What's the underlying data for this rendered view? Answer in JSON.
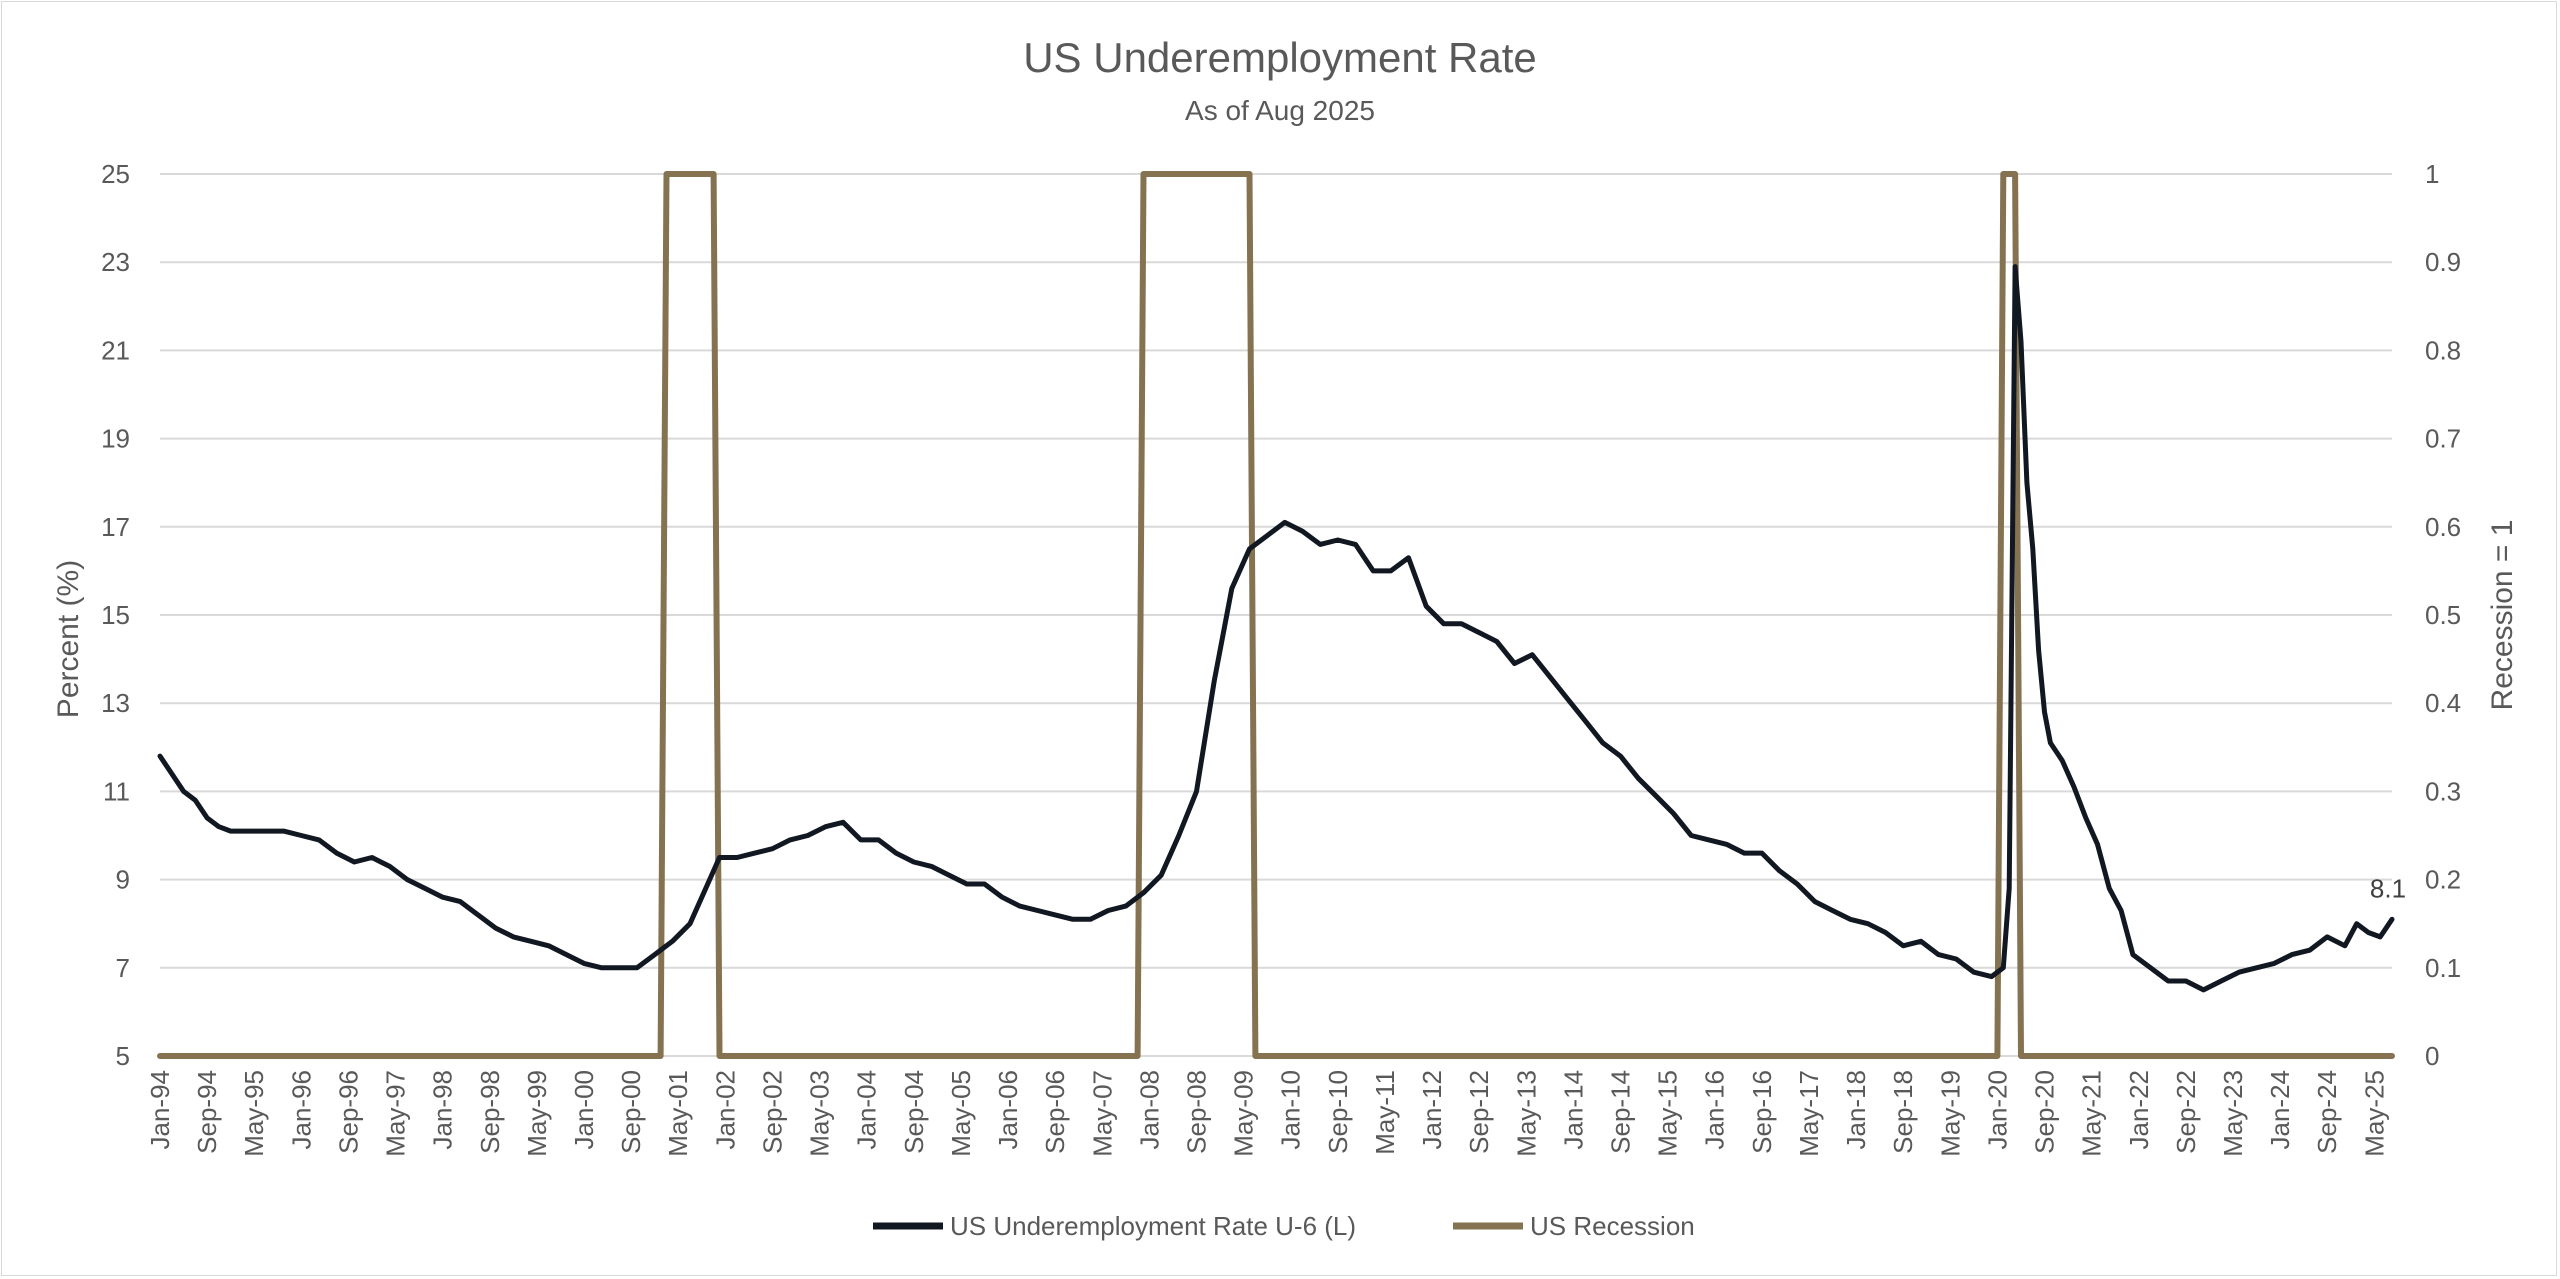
{
  "chart_data": {
    "type": "line",
    "title": "US Underemployment Rate",
    "subtitle": "As of Aug 2025",
    "ylabel_left": "Percent (%)",
    "ylabel_right": "Recession = 1",
    "ylim_left": [
      5,
      25
    ],
    "ylim_right": [
      0,
      1
    ],
    "yticks_left": [
      "5",
      "7",
      "9",
      "11",
      "13",
      "15",
      "17",
      "19",
      "21",
      "23",
      "25"
    ],
    "yticks_right": [
      "0",
      "0.1",
      "0.2",
      "0.3",
      "0.4",
      "0.5",
      "0.6",
      "0.7",
      "0.8",
      "0.9",
      "1"
    ],
    "xlim": [
      "1994-01",
      "2025-08"
    ],
    "xtick_labels": [
      "Jan-94",
      "Sep-94",
      "May-95",
      "Jan-96",
      "Sep-96",
      "May-97",
      "Jan-98",
      "Sep-98",
      "May-99",
      "Jan-00",
      "Sep-00",
      "May-01",
      "Jan-02",
      "Sep-02",
      "May-03",
      "Jan-04",
      "Sep-04",
      "May-05",
      "Jan-06",
      "Sep-06",
      "May-07",
      "Jan-08",
      "Sep-08",
      "May-09",
      "Jan-10",
      "Sep-10",
      "May-11",
      "Jan-12",
      "Sep-12",
      "May-13",
      "Jan-14",
      "Sep-14",
      "May-15",
      "Jan-16",
      "Sep-16",
      "May-17",
      "Jan-18",
      "Sep-18",
      "May-19",
      "Jan-20",
      "Sep-20",
      "May-21",
      "Jan-22",
      "Sep-22",
      "May-23",
      "Jan-24",
      "Sep-24",
      "May-25"
    ],
    "grid": true,
    "legend_position": "bottom",
    "series": [
      {
        "name": "US Underemployment Rate U-6 (L)",
        "axis": "left",
        "color": "#121821",
        "points": [
          [
            "1994-01",
            11.8
          ],
          [
            "1994-03",
            11.4
          ],
          [
            "1994-05",
            11.0
          ],
          [
            "1994-07",
            10.8
          ],
          [
            "1994-09",
            10.4
          ],
          [
            "1994-11",
            10.2
          ],
          [
            "1995-01",
            10.1
          ],
          [
            "1995-04",
            10.1
          ],
          [
            "1995-07",
            10.1
          ],
          [
            "1995-10",
            10.1
          ],
          [
            "1996-01",
            10.0
          ],
          [
            "1996-04",
            9.9
          ],
          [
            "1996-07",
            9.6
          ],
          [
            "1996-10",
            9.4
          ],
          [
            "1997-01",
            9.5
          ],
          [
            "1997-04",
            9.3
          ],
          [
            "1997-07",
            9.0
          ],
          [
            "1997-10",
            8.8
          ],
          [
            "1998-01",
            8.6
          ],
          [
            "1998-04",
            8.5
          ],
          [
            "1998-07",
            8.2
          ],
          [
            "1998-10",
            7.9
          ],
          [
            "1999-01",
            7.7
          ],
          [
            "1999-04",
            7.6
          ],
          [
            "1999-07",
            7.5
          ],
          [
            "1999-10",
            7.3
          ],
          [
            "2000-01",
            7.1
          ],
          [
            "2000-04",
            7.0
          ],
          [
            "2000-07",
            7.0
          ],
          [
            "2000-10",
            7.0
          ],
          [
            "2001-01",
            7.3
          ],
          [
            "2001-04",
            7.6
          ],
          [
            "2001-07",
            8.0
          ],
          [
            "2001-10",
            8.9
          ],
          [
            "2001-12",
            9.5
          ],
          [
            "2002-03",
            9.5
          ],
          [
            "2002-06",
            9.6
          ],
          [
            "2002-09",
            9.7
          ],
          [
            "2002-12",
            9.9
          ],
          [
            "2003-03",
            10.0
          ],
          [
            "2003-06",
            10.2
          ],
          [
            "2003-09",
            10.3
          ],
          [
            "2003-12",
            9.9
          ],
          [
            "2004-03",
            9.9
          ],
          [
            "2004-06",
            9.6
          ],
          [
            "2004-09",
            9.4
          ],
          [
            "2004-12",
            9.3
          ],
          [
            "2005-03",
            9.1
          ],
          [
            "2005-06",
            8.9
          ],
          [
            "2005-09",
            8.9
          ],
          [
            "2005-12",
            8.6
          ],
          [
            "2006-03",
            8.4
          ],
          [
            "2006-06",
            8.3
          ],
          [
            "2006-09",
            8.2
          ],
          [
            "2006-12",
            8.1
          ],
          [
            "2007-03",
            8.1
          ],
          [
            "2007-06",
            8.3
          ],
          [
            "2007-09",
            8.4
          ],
          [
            "2007-12",
            8.7
          ],
          [
            "2008-03",
            9.1
          ],
          [
            "2008-06",
            10.0
          ],
          [
            "2008-09",
            11.0
          ],
          [
            "2008-12",
            13.5
          ],
          [
            "2009-03",
            15.6
          ],
          [
            "2009-06",
            16.5
          ],
          [
            "2009-09",
            16.8
          ],
          [
            "2009-12",
            17.1
          ],
          [
            "2010-03",
            16.9
          ],
          [
            "2010-06",
            16.6
          ],
          [
            "2010-09",
            16.7
          ],
          [
            "2010-12",
            16.6
          ],
          [
            "2011-03",
            16.0
          ],
          [
            "2011-06",
            16.0
          ],
          [
            "2011-09",
            16.3
          ],
          [
            "2011-12",
            15.2
          ],
          [
            "2012-03",
            14.8
          ],
          [
            "2012-06",
            14.8
          ],
          [
            "2012-09",
            14.6
          ],
          [
            "2012-12",
            14.4
          ],
          [
            "2013-03",
            13.9
          ],
          [
            "2013-06",
            14.1
          ],
          [
            "2013-09",
            13.6
          ],
          [
            "2013-12",
            13.1
          ],
          [
            "2014-03",
            12.6
          ],
          [
            "2014-06",
            12.1
          ],
          [
            "2014-09",
            11.8
          ],
          [
            "2014-12",
            11.3
          ],
          [
            "2015-03",
            10.9
          ],
          [
            "2015-06",
            10.5
          ],
          [
            "2015-09",
            10.0
          ],
          [
            "2015-12",
            9.9
          ],
          [
            "2016-03",
            9.8
          ],
          [
            "2016-06",
            9.6
          ],
          [
            "2016-09",
            9.6
          ],
          [
            "2016-12",
            9.2
          ],
          [
            "2017-03",
            8.9
          ],
          [
            "2017-06",
            8.5
          ],
          [
            "2017-09",
            8.3
          ],
          [
            "2017-12",
            8.1
          ],
          [
            "2018-03",
            8.0
          ],
          [
            "2018-06",
            7.8
          ],
          [
            "2018-09",
            7.5
          ],
          [
            "2018-12",
            7.6
          ],
          [
            "2019-03",
            7.3
          ],
          [
            "2019-06",
            7.2
          ],
          [
            "2019-09",
            6.9
          ],
          [
            "2019-12",
            6.8
          ],
          [
            "2020-02",
            7.0
          ],
          [
            "2020-03",
            8.8
          ],
          [
            "2020-04",
            22.9
          ],
          [
            "2020-05",
            21.2
          ],
          [
            "2020-06",
            18.0
          ],
          [
            "2020-07",
            16.5
          ],
          [
            "2020-08",
            14.2
          ],
          [
            "2020-09",
            12.8
          ],
          [
            "2020-10",
            12.1
          ],
          [
            "2020-12",
            11.7
          ],
          [
            "2021-02",
            11.1
          ],
          [
            "2021-04",
            10.4
          ],
          [
            "2021-06",
            9.8
          ],
          [
            "2021-08",
            8.8
          ],
          [
            "2021-10",
            8.3
          ],
          [
            "2021-12",
            7.3
          ],
          [
            "2022-03",
            7.0
          ],
          [
            "2022-06",
            6.7
          ],
          [
            "2022-09",
            6.7
          ],
          [
            "2022-12",
            6.5
          ],
          [
            "2023-03",
            6.7
          ],
          [
            "2023-06",
            6.9
          ],
          [
            "2023-09",
            7.0
          ],
          [
            "2023-12",
            7.1
          ],
          [
            "2024-03",
            7.3
          ],
          [
            "2024-06",
            7.4
          ],
          [
            "2024-09",
            7.7
          ],
          [
            "2024-12",
            7.5
          ],
          [
            "2025-02",
            8.0
          ],
          [
            "2025-04",
            7.8
          ],
          [
            "2025-06",
            7.7
          ],
          [
            "2025-08",
            8.1
          ]
        ]
      },
      {
        "name": "US Recession",
        "axis": "right",
        "color": "#857250",
        "points": [
          [
            "1994-01",
            0
          ],
          [
            "2001-02",
            0
          ],
          [
            "2001-03",
            1
          ],
          [
            "2001-11",
            1
          ],
          [
            "2001-12",
            0
          ],
          [
            "2007-11",
            0
          ],
          [
            "2007-12",
            1
          ],
          [
            "2009-06",
            1
          ],
          [
            "2009-07",
            0
          ],
          [
            "2020-01",
            0
          ],
          [
            "2020-02",
            1
          ],
          [
            "2020-04",
            1
          ],
          [
            "2020-05",
            0
          ],
          [
            "2025-08",
            0
          ]
        ]
      }
    ],
    "annotations": [
      {
        "text": "8.1",
        "x": "2025-08",
        "y": 8.1
      }
    ]
  }
}
